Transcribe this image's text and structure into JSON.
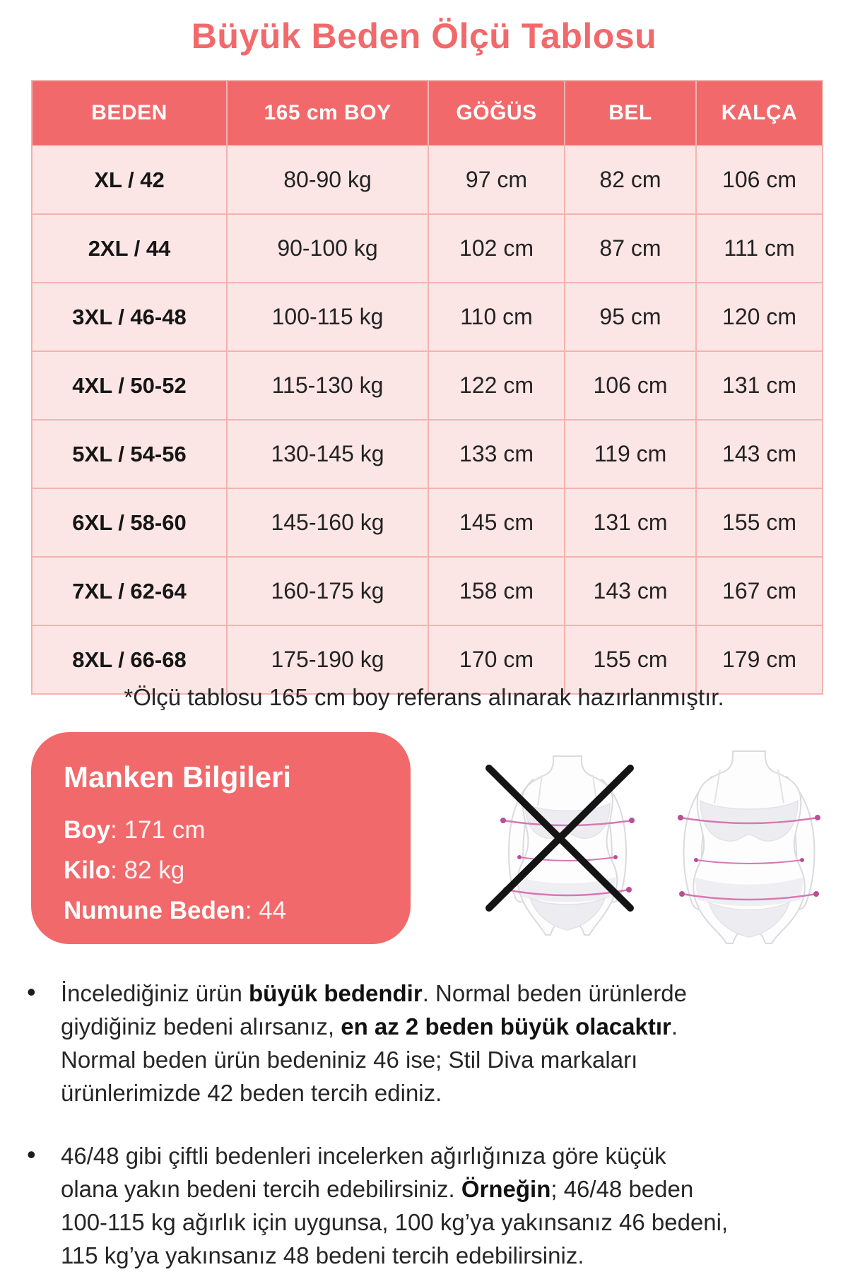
{
  "page": {
    "title": "Büyük Beden Ölçü Tablosu",
    "note": "*Ölçü tablosu 165 cm boy referans alınarak hazırlanmıştır.",
    "bullet_glyph": "•"
  },
  "colors": {
    "coral": "#f2696b",
    "cell_pink": "#fce6e5",
    "border_pink": "#f2b3b0",
    "text_dark": "#262626",
    "measure_line_pink": "#d678b4"
  },
  "table": {
    "columns": [
      "BEDEN",
      "165 cm BOY",
      "GÖĞÜS",
      "BEL",
      "KALÇA"
    ],
    "rows": [
      [
        "XL / 42",
        "80-90 kg",
        "97 cm",
        "82 cm",
        "106 cm"
      ],
      [
        "2XL / 44",
        "90-100 kg",
        "102 cm",
        "87 cm",
        "111 cm"
      ],
      [
        "3XL / 46-48",
        "100-115 kg",
        "110 cm",
        "95 cm",
        "120 cm"
      ],
      [
        "4XL / 50-52",
        "115-130 kg",
        "122 cm",
        "106 cm",
        "131 cm"
      ],
      [
        "5XL / 54-56",
        "130-145 kg",
        "133 cm",
        "119 cm",
        "143 cm"
      ],
      [
        "6XL / 58-60",
        "145-160 kg",
        "145 cm",
        "131 cm",
        "155 cm"
      ],
      [
        "7XL / 62-64",
        "160-175 kg",
        "158 cm",
        "143 cm",
        "167 cm"
      ],
      [
        "8XL / 66-68",
        "175-190 kg",
        "170 cm",
        "155 cm",
        "179 cm"
      ]
    ]
  },
  "model_info": {
    "title": "Manken Bilgileri",
    "fields": [
      {
        "label": "Boy",
        "value": "171 cm"
      },
      {
        "label": "Kilo",
        "value": "82 kg"
      },
      {
        "label": "Numune Beden",
        "value": "44"
      }
    ]
  },
  "figures": {
    "left": "slim-body-silhouette-crossed-out",
    "right": "plus-size-body-silhouette"
  },
  "bullets": [
    {
      "lines": [
        [
          {
            "t": "İncelediğiniz ürün "
          },
          {
            "t": "büyük bedendir",
            "b": true
          },
          {
            "t": ". Normal beden ürünlerde"
          }
        ],
        [
          {
            "t": "giydiğiniz bedeni alırsanız, "
          },
          {
            "t": "en az 2 beden büyük olacaktır",
            "b": true
          },
          {
            "t": "."
          }
        ],
        [
          {
            "t": "Normal beden ürün bedeniniz 46 ise; Stil Diva markaları"
          }
        ],
        [
          {
            "t": "ürünlerimizde 42 beden tercih ediniz."
          }
        ]
      ]
    },
    {
      "lines": [
        [
          {
            "t": "46/48 gibi çiftli bedenleri incelerken ağırlığınıza göre küçük"
          }
        ],
        [
          {
            "t": "olana yakın bedeni tercih edebilirsiniz. "
          },
          {
            "t": "Örneğin",
            "b": true
          },
          {
            "t": "; 46/48 beden"
          }
        ],
        [
          {
            "t": "100-115 kg ağırlık için uygunsa, 100 kg’ya yakınsanız 46 bedeni,"
          }
        ],
        [
          {
            "t": "115 kg’ya yakınsanız 48 bedeni tercih edebilirsiniz."
          }
        ]
      ]
    }
  ]
}
